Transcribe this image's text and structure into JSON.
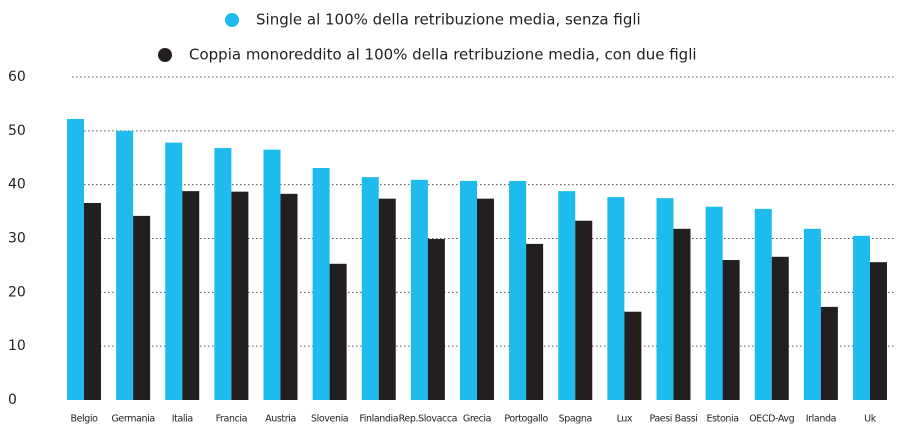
{
  "chart_data": {
    "type": "bar",
    "categories": [
      "Belgio",
      "Germania",
      "Italia",
      "Francia",
      "Austria",
      "Slovenia",
      "Finlandia",
      "Rep.Slovacca",
      "Grecia",
      "Portogallo",
      "Spagna",
      "Lux",
      "Paesi Bassi",
      "Estonia",
      "OECD-Avg",
      "Irlanda",
      "Uk"
    ],
    "series": [
      {
        "name": "Single al 100% della retribuzione media, senza figli",
        "color": "#1ebbee",
        "values": [
          52.2,
          50.0,
          47.8,
          46.8,
          46.5,
          43.1,
          41.4,
          40.9,
          40.7,
          40.7,
          38.8,
          37.7,
          37.5,
          35.9,
          35.5,
          31.8,
          30.5
        ]
      },
      {
        "name": "Coppia monoreddito al 100% della retribuzione media, con due figli",
        "color": "#231f20",
        "values": [
          36.6,
          34.2,
          38.8,
          38.7,
          38.3,
          25.3,
          37.4,
          29.9,
          37.4,
          29.0,
          33.3,
          16.4,
          31.8,
          26.0,
          26.6,
          17.3,
          25.6
        ]
      }
    ],
    "ylim": [
      0,
      60
    ],
    "yticks": [
      0,
      10,
      20,
      30,
      40,
      50,
      60
    ],
    "grid": true,
    "legend": "top"
  }
}
